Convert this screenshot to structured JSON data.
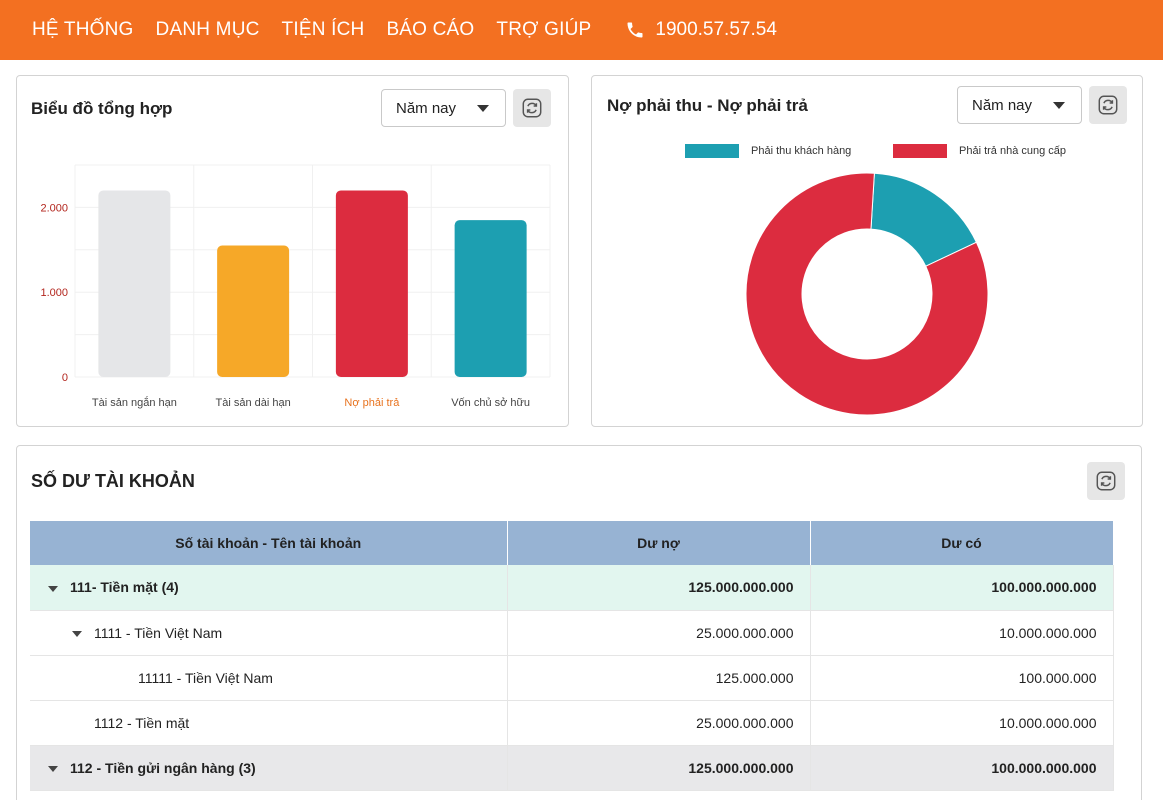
{
  "nav": {
    "items": [
      "HỆ THỐNG",
      "DANH MỤC",
      "TIỆN ÍCH",
      "BÁO CÁO",
      "TRỢ GIÚP"
    ],
    "phone": "1900.57.57.54"
  },
  "summary_card": {
    "title": "Biểu đồ tổng hợp",
    "period": "Năm nay"
  },
  "debt_card": {
    "title": "Nợ phải thu - Nợ phải trả",
    "period": "Năm nay"
  },
  "balance_card": {
    "title": "SỐ DƯ TÀI KHOẢN",
    "columns": [
      "Số tài khoản - Tên tài khoản",
      "Dư nợ",
      "Dư có"
    ],
    "rows": [
      {
        "name": "111- Tiền mặt (4)",
        "debit": "125.000.000.000",
        "credit": "100.000.000.000"
      },
      {
        "name": "1111 - Tiền Việt Nam",
        "debit": "25.000.000.000",
        "credit": "10.000.000.000"
      },
      {
        "name": "11111 - Tiền Việt Nam",
        "debit": "125.000.000",
        "credit": "100.000.000"
      },
      {
        "name": "1112 - Tiền mặt",
        "debit": "25.000.000.000",
        "credit": "10.000.000.000"
      },
      {
        "name": "112 - Tiền gửi ngân hàng (3)",
        "debit": "125.000.000.000",
        "credit": "100.000.000.000"
      }
    ]
  },
  "colors": {
    "brand": "#f37021",
    "grey_bar": "#e5e6e8",
    "yellow_bar": "#f6a828",
    "red": "#dc2c3f",
    "teal": "#1d9fb1",
    "axis_label": "#b3261e",
    "highlight_label": "#e8731f"
  },
  "chart_data": [
    {
      "type": "bar",
      "categories": [
        "Tài sản ngắn hạn",
        "Tài sản dài hạn",
        "Nợ phải trả",
        "Vốn chủ sở hữu"
      ],
      "values": [
        2200,
        1550,
        2200,
        1850
      ],
      "yticks": [
        "0",
        "1.000",
        "2.000"
      ],
      "ylim": [
        0,
        2500
      ],
      "grid": true,
      "highlighted_category": "Nợ phải trả"
    },
    {
      "type": "pie",
      "donut": true,
      "labels": [
        "Phải thu khách hàng",
        "Phải trả nhà cung cấp"
      ],
      "values": [
        17,
        83
      ],
      "legend": "top"
    }
  ]
}
